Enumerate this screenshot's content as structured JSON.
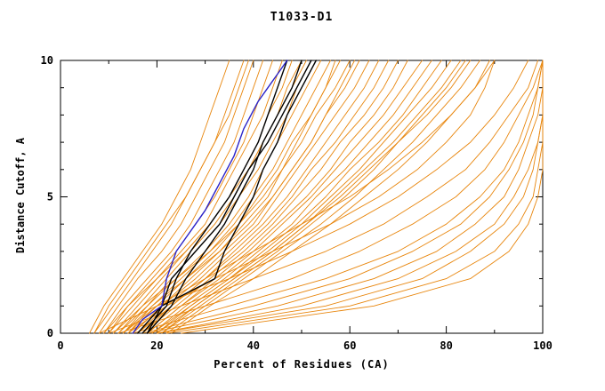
{
  "title": "T1033-D1",
  "colors": {
    "orange": "#e8860d",
    "black": "#000000",
    "blue": "#2a22c8",
    "axis": "#000000"
  },
  "chart_data": {
    "type": "line",
    "title": "T1033-D1",
    "xlabel": "Percent of Residues (CA)",
    "ylabel": "Distance Cutoff, A",
    "xlim": [
      0,
      100
    ],
    "ylim": [
      0,
      10
    ],
    "xticks": [
      0,
      20,
      40,
      60,
      80,
      100
    ],
    "yticks": [
      0,
      5,
      10
    ],
    "x_minor_step": 10,
    "y_minor_step": 1,
    "grid": false,
    "legend": "none",
    "cutoffs": [
      0,
      1,
      2,
      3,
      4,
      5,
      6,
      7,
      8,
      9,
      10
    ],
    "orange_series": [
      [
        6,
        9,
        13,
        17,
        21,
        24,
        27,
        29,
        31,
        33,
        35
      ],
      [
        7,
        11,
        15,
        19,
        23,
        26,
        29,
        32,
        34,
        36,
        38
      ],
      [
        8,
        12,
        16,
        21,
        25,
        28,
        31,
        34,
        36,
        38,
        40
      ],
      [
        9,
        13,
        18,
        23,
        27,
        30,
        33,
        36,
        38,
        40,
        42
      ],
      [
        10,
        14,
        19,
        24,
        28,
        32,
        35,
        38,
        40,
        42,
        44
      ],
      [
        10,
        15,
        20,
        25,
        30,
        33,
        36,
        39,
        42,
        44,
        46
      ],
      [
        11,
        16,
        21,
        26,
        31,
        35,
        38,
        41,
        43,
        46,
        48
      ],
      [
        12,
        17,
        22,
        27,
        32,
        36,
        39,
        42,
        45,
        47,
        50
      ],
      [
        12,
        18,
        23,
        28,
        33,
        37,
        41,
        44,
        47,
        49,
        52
      ],
      [
        13,
        18,
        24,
        30,
        35,
        39,
        42,
        45,
        48,
        51,
        54
      ],
      [
        14,
        19,
        25,
        31,
        36,
        40,
        44,
        47,
        50,
        53,
        56
      ],
      [
        14,
        20,
        26,
        32,
        37,
        41,
        45,
        48,
        52,
        55,
        58
      ],
      [
        15,
        21,
        27,
        33,
        38,
        43,
        46,
        50,
        53,
        57,
        60
      ],
      [
        15,
        21,
        28,
        34,
        40,
        44,
        48,
        52,
        55,
        59,
        62
      ],
      [
        16,
        22,
        29,
        35,
        41,
        45,
        49,
        53,
        57,
        61,
        64
      ],
      [
        16,
        23,
        30,
        36,
        42,
        47,
        51,
        55,
        59,
        63,
        66
      ],
      [
        17,
        23,
        30,
        37,
        43,
        48,
        52,
        57,
        61,
        65,
        68
      ],
      [
        17,
        24,
        31,
        38,
        44,
        49,
        54,
        58,
        63,
        67,
        70
      ],
      [
        18,
        25,
        32,
        39,
        45,
        51,
        56,
        60,
        65,
        69,
        72
      ],
      [
        18,
        25,
        33,
        40,
        46,
        52,
        57,
        62,
        67,
        71,
        75
      ],
      [
        19,
        26,
        34,
        41,
        48,
        53,
        59,
        64,
        69,
        73,
        77
      ],
      [
        19,
        27,
        35,
        42,
        49,
        55,
        60,
        66,
        71,
        75,
        79
      ],
      [
        20,
        27,
        35,
        43,
        50,
        56,
        62,
        67,
        72,
        77,
        81
      ],
      [
        20,
        28,
        36,
        44,
        51,
        57,
        63,
        69,
        74,
        79,
        83
      ],
      [
        21,
        29,
        37,
        45,
        52,
        59,
        65,
        70,
        76,
        81,
        85
      ],
      [
        11,
        17,
        24,
        31,
        37,
        42,
        46,
        49,
        52,
        55,
        57
      ],
      [
        13,
        19,
        26,
        33,
        39,
        44,
        48,
        52,
        55,
        58,
        61
      ],
      [
        9,
        14,
        20,
        26,
        31,
        35,
        39,
        42,
        45,
        48,
        51
      ],
      [
        21,
        28,
        36,
        44,
        51,
        58,
        64,
        70,
        75,
        80,
        84
      ],
      [
        22,
        30,
        38,
        46,
        54,
        61,
        67,
        73,
        78,
        83,
        87
      ],
      [
        7,
        10,
        14,
        18,
        22,
        26,
        29,
        32,
        35,
        37,
        39
      ],
      [
        23,
        31,
        40,
        48,
        56,
        63,
        70,
        76,
        81,
        86,
        90
      ],
      [
        14,
        22,
        32,
        44,
        56,
        66,
        74,
        80,
        85,
        88,
        90
      ],
      [
        13,
        20,
        30,
        40,
        50,
        60,
        68,
        75,
        81,
        86,
        89
      ],
      [
        20,
        55,
        75,
        85,
        92,
        96,
        98,
        99,
        100,
        100,
        100
      ],
      [
        18,
        45,
        65,
        78,
        86,
        92,
        95,
        97,
        99,
        100,
        100
      ],
      [
        22,
        60,
        80,
        90,
        95,
        98,
        99,
        100,
        100,
        100,
        100
      ],
      [
        15,
        35,
        55,
        70,
        80,
        87,
        92,
        95,
        97,
        99,
        100
      ],
      [
        25,
        65,
        85,
        93,
        97,
        99,
        100,
        100,
        100,
        100,
        100
      ],
      [
        12,
        30,
        48,
        62,
        73,
        82,
        88,
        92,
        95,
        98,
        100
      ],
      [
        10,
        25,
        40,
        55,
        67,
        76,
        84,
        89,
        93,
        97,
        99
      ],
      [
        8,
        20,
        35,
        48,
        60,
        70,
        78,
        85,
        90,
        94,
        97
      ],
      [
        20,
        50,
        70,
        82,
        90,
        94,
        97,
        99,
        100,
        100,
        100
      ],
      [
        17,
        40,
        60,
        73,
        83,
        89,
        93,
        96,
        98,
        99,
        100
      ]
    ],
    "black_series": [
      [
        17,
        22,
        24,
        27,
        31,
        35,
        38,
        41,
        43,
        45,
        47
      ],
      [
        18,
        23,
        26,
        30,
        34,
        37,
        40,
        42,
        45,
        48,
        50
      ],
      [
        16,
        21,
        23,
        28,
        33,
        36,
        39,
        43,
        46,
        49,
        52
      ],
      [
        18,
        21,
        32,
        34,
        37,
        40,
        42,
        45,
        47,
        50,
        53
      ]
    ],
    "blue_series": {
      "cutoffs": [
        0,
        0.5,
        1,
        1.5,
        2,
        2.5,
        3,
        3.5,
        4,
        4.5,
        5,
        5.5,
        6,
        6.5,
        7,
        7.5,
        8,
        8.5,
        9,
        9.5,
        10
      ],
      "values": [
        15,
        17,
        21,
        21.5,
        22,
        23,
        24,
        26,
        28,
        30,
        31.5,
        33,
        34.5,
        36,
        37,
        38,
        39.5,
        41,
        43,
        45,
        47
      ]
    }
  }
}
